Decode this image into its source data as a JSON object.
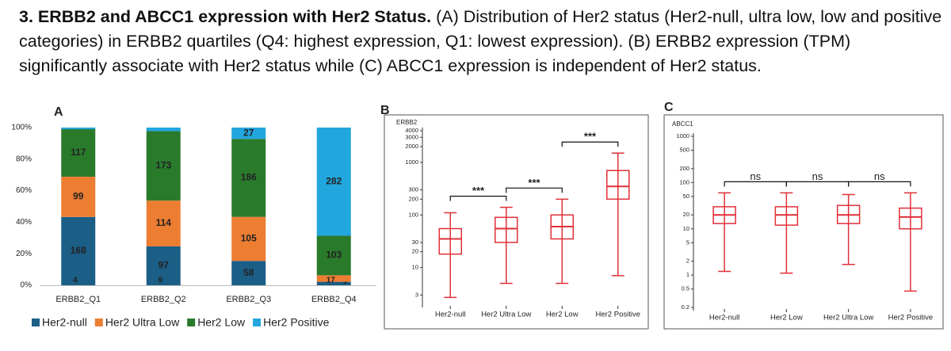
{
  "caption": {
    "bold": "3. ERBB2 and ABCC1 expression with Her2 Status.",
    "text": "(A) Distribution of Her2 status (Her2-null, ultra low, low and positive categories) in ERBB2 quartiles (Q4: highest expression, Q1: lowest expression). (B) ERBB2 expression (TPM) significantly associate with Her2 status while (C) ABCC1 expression is independent of Her2 status."
  },
  "chart_data": [
    {
      "type": "bar",
      "panel": "A",
      "stacked": true,
      "normalized": true,
      "categories": [
        "ERBB2_Q1",
        "ERBB2_Q2",
        "ERBB2_Q3",
        "ERBB2_Q4"
      ],
      "series": [
        {
          "name": "Her2-null",
          "color": "#1b5e86",
          "values": [
            168,
            97,
            58,
            9
          ]
        },
        {
          "name": "Her2 Ultra Low",
          "color": "#ed7d31",
          "values": [
            99,
            114,
            105,
            17
          ]
        },
        {
          "name": "Her2 Low",
          "color": "#2a7a2c",
          "values": [
            117,
            173,
            186,
            103
          ]
        },
        {
          "name": "Her2 Positive",
          "color": "#22a6de",
          "values": [
            4,
            9,
            27,
            282
          ]
        }
      ],
      "ylim": [
        0,
        100
      ],
      "yticks": [
        {
          "value": 0,
          "label": "0%"
        },
        {
          "value": 20,
          "label": "20%"
        },
        {
          "value": 40,
          "label": "40%"
        },
        {
          "value": 60,
          "label": "60%"
        },
        {
          "value": 80,
          "label": "80%"
        },
        {
          "value": 100,
          "label": "100%"
        }
      ],
      "legend": "bottom",
      "grid": false
    },
    {
      "type": "box",
      "panel": "B",
      "ylabel": "ERBB2",
      "categories": [
        "Her2-null",
        "Her2 Ultra Low",
        "Her2 Low",
        "Her2 Positive"
      ],
      "min": [
        2.7,
        5,
        5,
        7
      ],
      "q1": [
        18,
        30,
        35,
        200
      ],
      "median": [
        35,
        55,
        60,
        350
      ],
      "q3": [
        55,
        90,
        100,
        700
      ],
      "max": [
        110,
        140,
        200,
        1500
      ],
      "color": "#e0303a",
      "log_scale": true,
      "ylim": [
        2,
        4000
      ],
      "yticks": [
        3,
        10,
        20,
        30,
        100,
        200,
        300,
        1000,
        2000,
        3000,
        4000
      ],
      "annotations": [
        {
          "between": [
            "Her2-null",
            "Her2 Ultra Low"
          ],
          "label": "***"
        },
        {
          "between": [
            "Her2 Ultra Low",
            "Her2 Low"
          ],
          "label": "***"
        },
        {
          "between": [
            "Her2 Low",
            "Her2 Positive"
          ],
          "label": "***"
        }
      ],
      "annotation_color": "#e0202a"
    },
    {
      "type": "box",
      "panel": "C",
      "ylabel": "ABCC1",
      "categories": [
        "Her2-null",
        "Her2 Low",
        "Her2 Ultra Low",
        "Her2 Positive"
      ],
      "min": [
        1.2,
        1.1,
        1.7,
        0.45
      ],
      "q1": [
        13,
        12,
        13,
        10
      ],
      "median": [
        20,
        20,
        20,
        18
      ],
      "q3": [
        30,
        30,
        32,
        28
      ],
      "max": [
        60,
        60,
        55,
        60
      ],
      "color": "#e0303a",
      "log_scale": true,
      "ylim": [
        0.2,
        1000
      ],
      "yticks": [
        0.2,
        0.5,
        1,
        2,
        5,
        10,
        20,
        50,
        100,
        200,
        500,
        1000
      ],
      "annotations": [
        {
          "between": [
            "Her2-null",
            "Her2 Low"
          ],
          "label": "ns"
        },
        {
          "between": [
            "Her2 Low",
            "Her2 Ultra Low"
          ],
          "label": "ns"
        },
        {
          "between": [
            "Her2 Ultra Low",
            "Her2 Positive"
          ],
          "label": "ns"
        }
      ],
      "annotation_color": "#111111"
    }
  ]
}
